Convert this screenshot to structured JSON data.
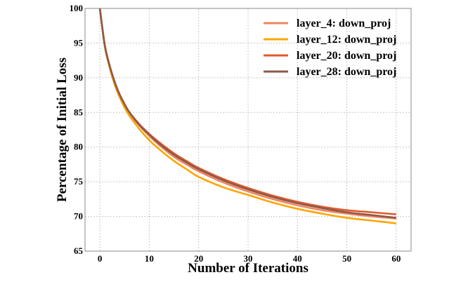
{
  "chart_data": {
    "type": "line",
    "title": "",
    "xlabel": "Number of Iterations",
    "ylabel": "Percentage of Initial Loss",
    "xlim": [
      -3,
      63
    ],
    "ylim": [
      65,
      100
    ],
    "xticks": [
      0,
      10,
      20,
      30,
      40,
      50,
      60
    ],
    "yticks": [
      65,
      70,
      75,
      80,
      85,
      90,
      95,
      100
    ],
    "grid": true,
    "legend_position": "upper right",
    "x": [
      0,
      1,
      2,
      3,
      4,
      5,
      6,
      8,
      10,
      12,
      15,
      18,
      20,
      25,
      30,
      35,
      40,
      45,
      50,
      55,
      60
    ],
    "series": [
      {
        "name": "layer_4: down_proj",
        "color": "#F4845F",
        "values": [
          100,
          94.6,
          91.6,
          89.3,
          87.5,
          86.1,
          84.9,
          83.1,
          81.6,
          80.3,
          78.6,
          77.3,
          76.5,
          74.9,
          73.6,
          72.5,
          71.6,
          70.9,
          70.4,
          70.0,
          69.7
        ]
      },
      {
        "name": "layer_12: down_proj",
        "color": "#FFA500",
        "values": [
          100,
          94.5,
          91.4,
          89.0,
          87.2,
          85.7,
          84.5,
          82.6,
          81.0,
          79.7,
          78.0,
          76.6,
          75.7,
          74.2,
          73.1,
          72.0,
          71.1,
          70.4,
          69.8,
          69.4,
          69.0
        ]
      },
      {
        "name": "layer_20: down_proj",
        "color": "#E05A2B",
        "values": [
          100,
          94.7,
          91.7,
          89.4,
          87.6,
          86.2,
          85.0,
          83.3,
          81.9,
          80.7,
          79.1,
          77.8,
          77.0,
          75.4,
          74.1,
          73.0,
          72.1,
          71.4,
          70.9,
          70.6,
          70.3
        ]
      },
      {
        "name": "layer_28: down_proj",
        "color": "#8B5A4A",
        "values": [
          100,
          94.7,
          91.7,
          89.4,
          87.6,
          86.2,
          85.0,
          83.2,
          81.8,
          80.5,
          78.9,
          77.6,
          76.8,
          75.2,
          73.9,
          72.8,
          71.9,
          71.2,
          70.6,
          70.2,
          69.8
        ]
      }
    ]
  }
}
